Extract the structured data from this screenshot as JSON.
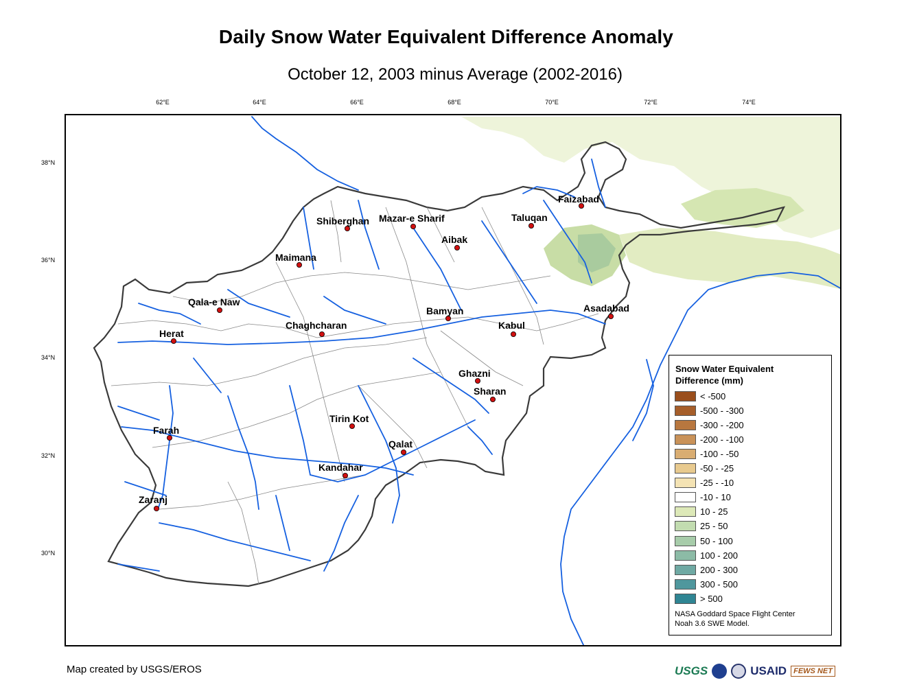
{
  "title": "Daily Snow Water Equivalent Difference Anomaly",
  "subtitle": "October 12, 2003 minus Average (2002-2016)",
  "axes": {
    "longitude_ticks": [
      "62°E",
      "64°E",
      "66°E",
      "68°E",
      "70°E",
      "72°E",
      "74°E"
    ],
    "latitude_ticks": [
      "38°N",
      "36°N",
      "34°N",
      "32°N",
      "30°N"
    ]
  },
  "cities": [
    "Faizabad",
    "Shiberghan",
    "Mazar-e Sharif",
    "Taluqan",
    "Aibak",
    "Maimana",
    "Qala-e Naw",
    "Asadabad",
    "Bamyan",
    "Herat",
    "Chaghcharan",
    "Kabul",
    "Ghazni",
    "Sharan",
    "Tirin Kot",
    "Farah",
    "Qalat",
    "Kandahar",
    "Zaranj"
  ],
  "colors": {
    "river": "#1560e0",
    "country_border": "#3a3a3a",
    "province_border": "#888888",
    "city_marker": "#d01010",
    "snow_low": "#dde9b8",
    "snow_mid": "#c8dda6"
  },
  "legend": {
    "title_line1": "Snow Water Equivalent",
    "title_line2": "Difference (mm)",
    "classes": [
      {
        "label": "< -500",
        "color": "#9a4e1c"
      },
      {
        "label": "-500 - -300",
        "color": "#a65e2a"
      },
      {
        "label": "-300 - -200",
        "color": "#b8773f"
      },
      {
        "label": "-200 - -100",
        "color": "#c99259"
      },
      {
        "label": "-100 - -50",
        "color": "#d9ad72"
      },
      {
        "label": "-50 - -25",
        "color": "#e8ca8f"
      },
      {
        "label": "-25 - -10",
        "color": "#f4e3b4"
      },
      {
        "label": "-10 - 10",
        "color": "#ffffff"
      },
      {
        "label": "10 - 25",
        "color": "#dde9b8"
      },
      {
        "label": "25 - 50",
        "color": "#c2dcb0"
      },
      {
        "label": "50 - 100",
        "color": "#a7ccaa"
      },
      {
        "label": "100 - 200",
        "color": "#8cbba6"
      },
      {
        "label": "200 - 300",
        "color": "#6fa9a3"
      },
      {
        "label": "300 - 500",
        "color": "#4f979d"
      },
      {
        "label": "> 500",
        "color": "#2f8593"
      }
    ],
    "note_line1": "NASA Goddard Space Flight Center",
    "note_line2": "Noah 3.6 SWE Model."
  },
  "credit": "Map created by USGS/EROS",
  "logos": {
    "usgs": "USGS",
    "usaid": "USAID",
    "fews": "FEWS NET"
  }
}
